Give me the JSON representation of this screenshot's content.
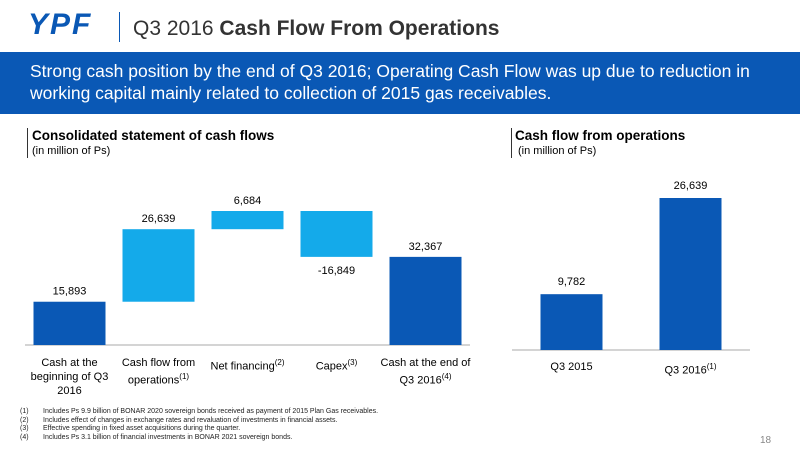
{
  "header": {
    "logo": "YPF",
    "title_prefix": "Q3 2016",
    "title_bold": "Cash Flow From Operations"
  },
  "banner": "Strong cash position by the end of Q3 2016; Operating Cash Flow was up due to reduction in working capital mainly related to collection of 2015 gas receivables.",
  "chart_data": [
    {
      "type": "waterfall",
      "title": "Consolidated statement of cash flows",
      "subtitle": "(in million of Ps)",
      "categories": [
        "Cash at the beginning of Q3 2016",
        "Cash flow from operations",
        "Net financing",
        "Capex",
        "Cash at the end of Q3 2016"
      ],
      "category_notes": [
        null,
        "(1)",
        "(2)",
        "(3)",
        "(4)"
      ],
      "values": [
        15893,
        26639,
        6684,
        -16849,
        32367
      ],
      "value_labels": [
        "15,893",
        "26,639",
        "6,684",
        "-16,849",
        "32,367"
      ],
      "totals": [
        true,
        false,
        false,
        false,
        true
      ],
      "total_color": "#0a58b5",
      "change_color": "#14aaea"
    },
    {
      "type": "bar",
      "title": "Cash flow from operations",
      "subtitle": "(in million of Ps)",
      "categories": [
        "Q3 2015",
        "Q3 2016"
      ],
      "category_notes": [
        null,
        "(1)"
      ],
      "values": [
        9782,
        26639
      ],
      "value_labels": [
        "9,782",
        "26,639"
      ],
      "color": "#0a58b5"
    }
  ],
  "footnotes": [
    {
      "mark": "(1)",
      "text": "Includes Ps 9.9 billion of BONAR 2020 sovereign bonds received as payment of 2015 Plan Gas receivables."
    },
    {
      "mark": "(2)",
      "text": "Includes effect of changes in exchange rates and revaluation of investments in financial assets."
    },
    {
      "mark": "(3)",
      "text": "Effective spending in fixed asset acquisitions during the quarter."
    },
    {
      "mark": "(4)",
      "text": "Includes Ps 3.1 billion of financial investments in BONAR 2021 sovereign bonds."
    }
  ],
  "page_number": "18"
}
